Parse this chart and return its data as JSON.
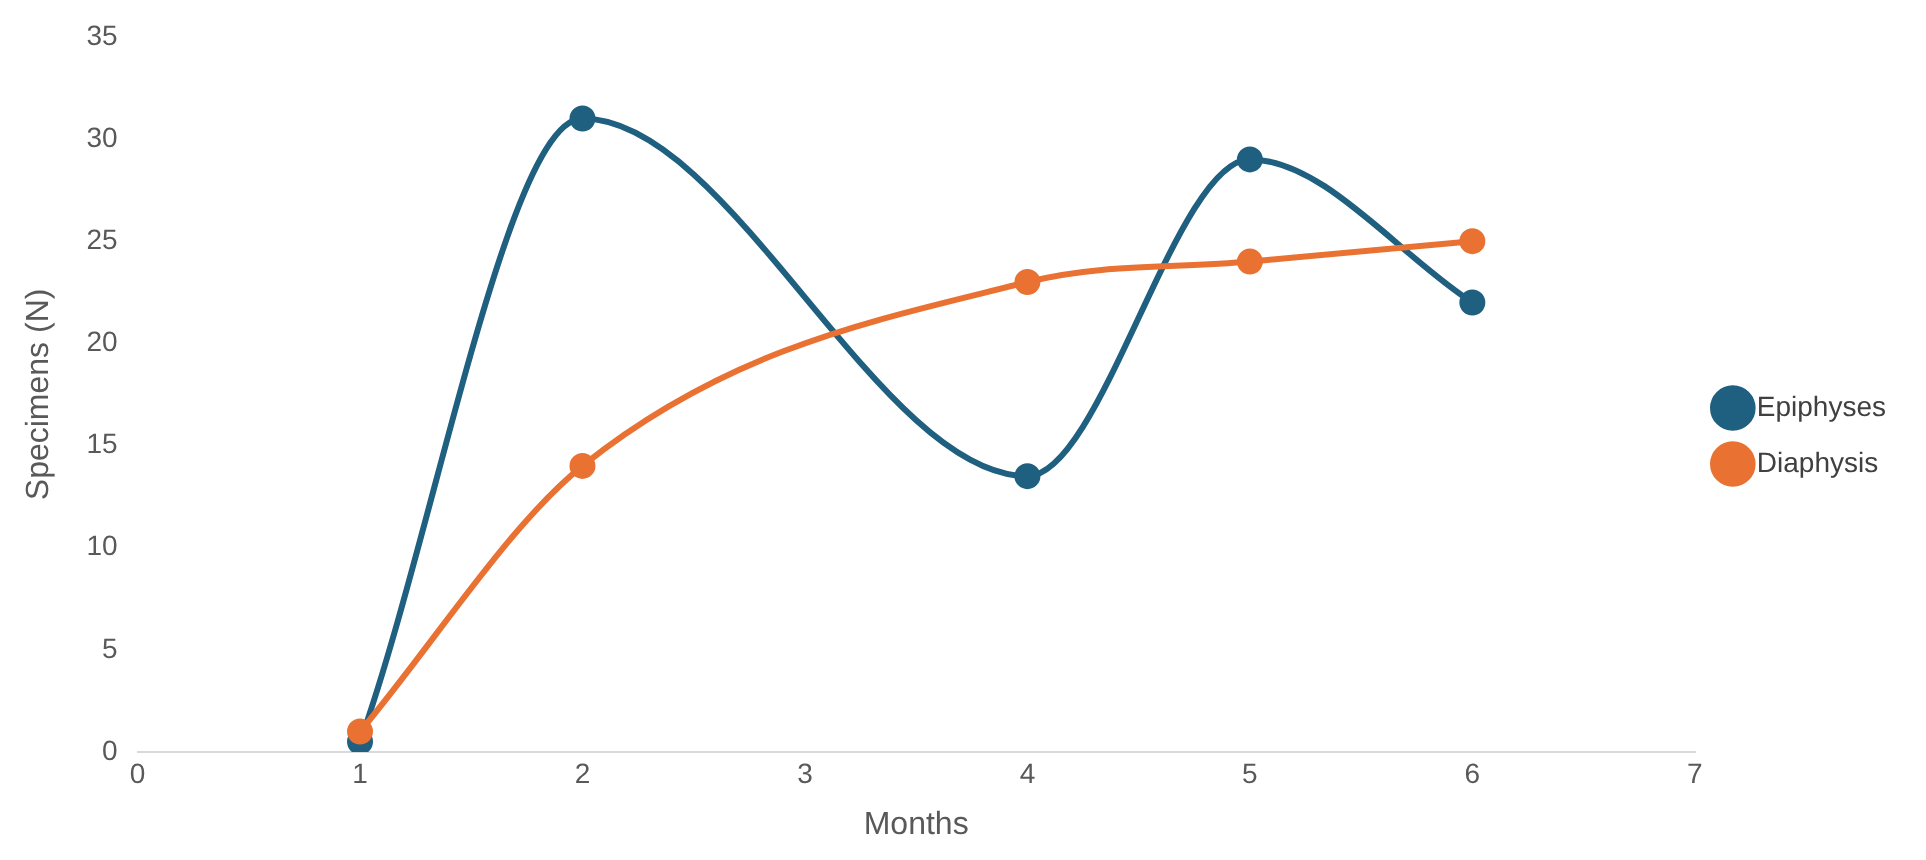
{
  "chart_data": {
    "type": "line",
    "xlabel": "Months",
    "ylabel": "Specimens (N)",
    "xlim": [
      0,
      7
    ],
    "xticks": [
      0,
      1,
      2,
      3,
      4,
      5,
      6,
      7
    ],
    "ylim": [
      0,
      35
    ],
    "yticks": [
      0,
      5,
      10,
      15,
      20,
      25,
      30,
      35
    ],
    "grid": false,
    "legend": "right",
    "marker": "circle",
    "x": [
      1,
      2,
      4,
      5,
      6
    ],
    "series": [
      {
        "name": "Epiphyses",
        "color": "#1f5f7f",
        "values": [
          0.5,
          31,
          13.5,
          29,
          22
        ]
      },
      {
        "name": "Diaphysis",
        "color": "#e97132",
        "values": [
          1,
          14,
          23,
          24,
          25
        ]
      }
    ]
  }
}
